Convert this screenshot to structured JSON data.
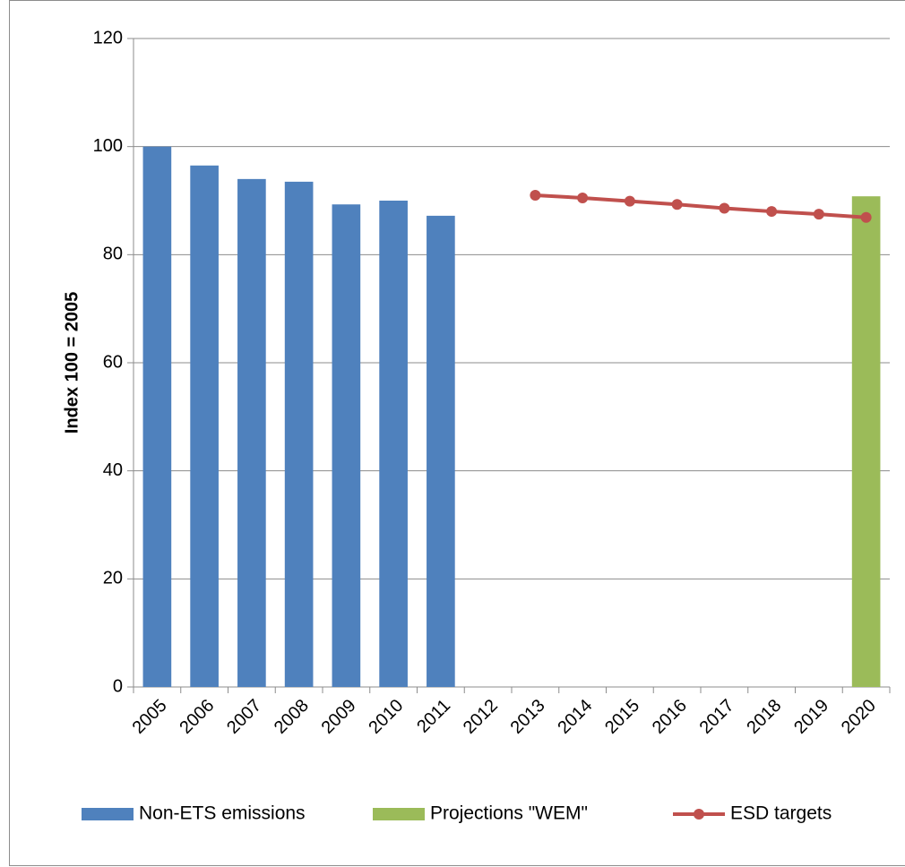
{
  "chart_data": {
    "type": "bar",
    "title": "",
    "xlabel": "",
    "ylabel": "Index 100 = 2005",
    "ylim": [
      0,
      120
    ],
    "yticks": [
      0,
      20,
      40,
      60,
      80,
      100,
      120
    ],
    "grid": true,
    "legend_position": "bottom",
    "categories": [
      "2005",
      "2006",
      "2007",
      "2008",
      "2009",
      "2010",
      "2011",
      "2012",
      "2013",
      "2014",
      "2015",
      "2016",
      "2017",
      "2018",
      "2019",
      "2020"
    ],
    "series": [
      {
        "name": "Non-ETS emissions",
        "type": "bar",
        "color": "#4f81bd",
        "values": [
          100,
          96.5,
          94,
          93.5,
          89.3,
          90,
          87.2,
          null,
          null,
          null,
          null,
          null,
          null,
          null,
          null,
          null
        ]
      },
      {
        "name": "Projections \"WEM\"",
        "type": "bar",
        "color": "#9bbb59",
        "values": [
          null,
          null,
          null,
          null,
          null,
          null,
          null,
          null,
          null,
          null,
          null,
          null,
          null,
          null,
          null,
          90.8
        ]
      },
      {
        "name": "ESD targets",
        "type": "line",
        "color": "#c0504d",
        "values": [
          null,
          null,
          null,
          null,
          null,
          null,
          null,
          null,
          91,
          90.5,
          89.9,
          89.3,
          88.6,
          88,
          87.5,
          86.9
        ]
      }
    ]
  }
}
